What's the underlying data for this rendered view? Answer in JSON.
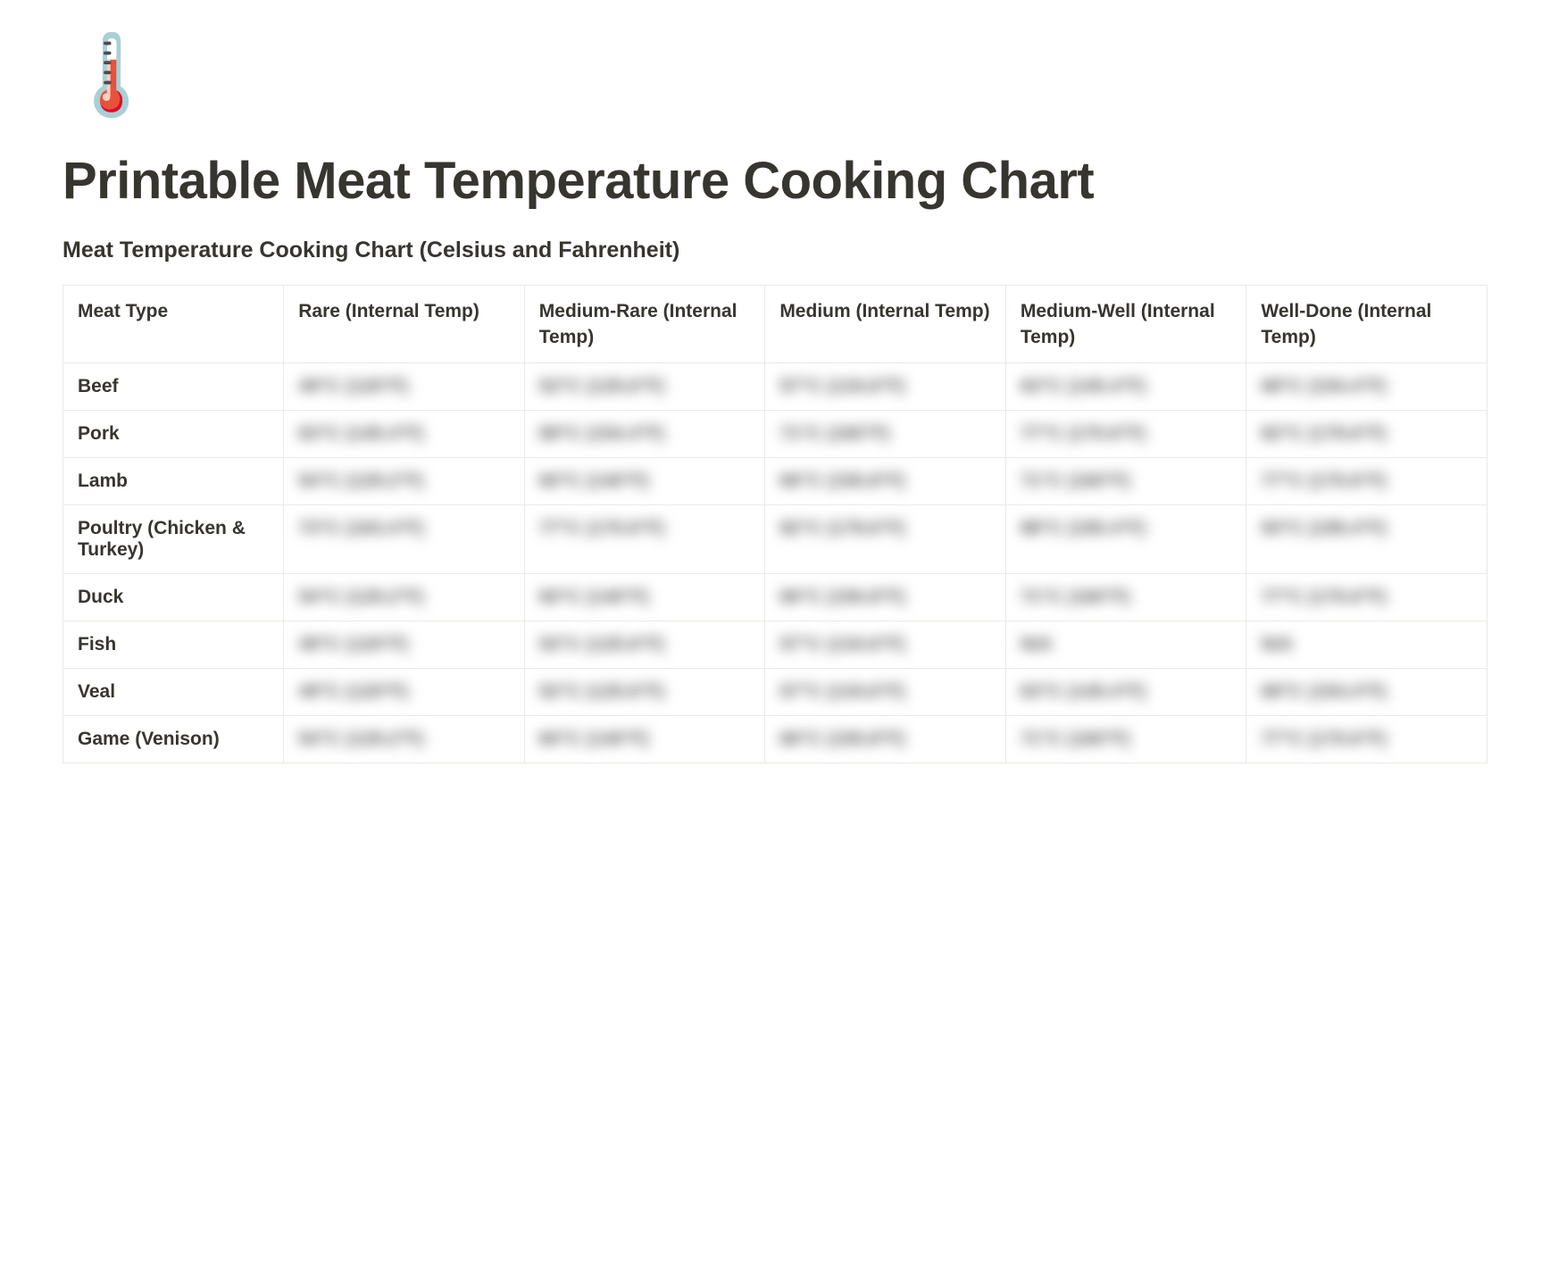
{
  "icon": "🌡️",
  "title": "Printable Meat Temperature Cooking Chart",
  "subtitle": "Meat Temperature Cooking Chart (Celsius and Fahrenheit)",
  "table": {
    "columns": [
      "Meat Type",
      "Rare (Internal Temp)",
      "Medium-Rare (Internal Temp)",
      "Medium (Internal Temp)",
      "Medium-Well (Internal Temp)",
      "Well-Done (Internal Temp)"
    ],
    "rows": [
      {
        "label": "Beef",
        "values": [
          "49°C (120°F)",
          "52°C (125.6°F)",
          "57°C (134.6°F)",
          "63°C (145.4°F)",
          "68°C (154.4°F)"
        ]
      },
      {
        "label": "Pork",
        "values": [
          "63°C (145.4°F)",
          "68°C (154.4°F)",
          "71°C (160°F)",
          "77°C (170.6°F)",
          "82°C (179.6°F)"
        ]
      },
      {
        "label": "Lamb",
        "values": [
          "54°C (129.2°F)",
          "60°C (140°F)",
          "66°C (150.8°F)",
          "71°C (160°F)",
          "77°C (170.6°F)"
        ]
      },
      {
        "label": "Poultry (Chicken & Turkey)",
        "values": [
          "73°C (163.4°F)",
          "77°C (170.6°F)",
          "82°C (179.6°F)",
          "88°C (190.4°F)",
          "93°C (199.4°F)"
        ]
      },
      {
        "label": "Duck",
        "values": [
          "54°C (129.2°F)",
          "60°C (140°F)",
          "66°C (150.8°F)",
          "71°C (160°F)",
          "77°C (170.6°F)"
        ]
      },
      {
        "label": "Fish",
        "values": [
          "49°C (120°F)",
          "52°C (125.6°F)",
          "57°C (134.6°F)",
          "N/A",
          "N/A"
        ]
      },
      {
        "label": "Veal",
        "values": [
          "49°C (120°F)",
          "52°C (125.6°F)",
          "57°C (134.6°F)",
          "63°C (145.4°F)",
          "68°C (154.4°F)"
        ]
      },
      {
        "label": "Game (Venison)",
        "values": [
          "54°C (129.2°F)",
          "60°C (140°F)",
          "66°C (150.8°F)",
          "71°C (160°F)",
          "77°C (170.6°F)"
        ]
      }
    ]
  },
  "styling": {
    "background_color": "#ffffff",
    "text_color": "#37352f",
    "border_color": "#e9e9e7",
    "title_fontsize": 58,
    "subtitle_fontsize": 25,
    "cell_fontsize": 21,
    "font_family": "-apple-system, BlinkMacSystemFont, Segoe UI, Helvetica, Arial, sans-serif",
    "non_header_cells_blurred": true
  }
}
